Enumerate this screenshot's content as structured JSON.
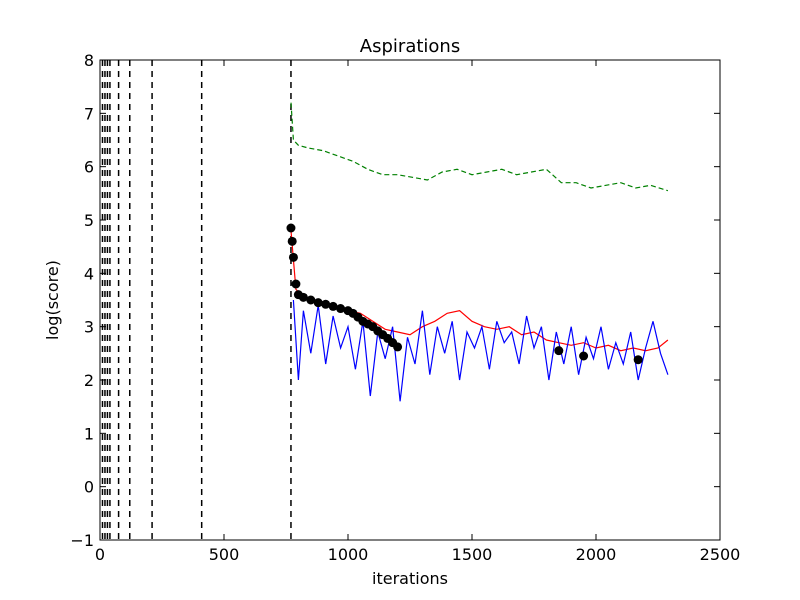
{
  "chart_data": {
    "type": "line",
    "title": "Aspirations",
    "xlabel": "iterations",
    "ylabel": "log(score)",
    "xlim": [
      0,
      2500
    ],
    "ylim": [
      -1,
      8
    ],
    "x_ticks": [
      0,
      500,
      1000,
      1500,
      2000,
      2500
    ],
    "x_tick_labels": [
      "0",
      "500",
      "1000",
      "1500",
      "2000",
      "2500"
    ],
    "y_ticks": [
      -1,
      0,
      1,
      2,
      3,
      4,
      5,
      6,
      7,
      8
    ],
    "y_tick_labels": [
      "−1",
      "0",
      "1",
      "2",
      "3",
      "4",
      "5",
      "6",
      "7",
      "8"
    ],
    "grid": false,
    "legend": "none",
    "restart_iterations": [
      10,
      20,
      30,
      40,
      75,
      120,
      210,
      410,
      770
    ],
    "series": [
      {
        "style": "dashed",
        "color": "#008000",
        "x": [
          770,
          780,
          800,
          840,
          900,
          960,
          1020,
          1080,
          1140,
          1200,
          1260,
          1320,
          1380,
          1440,
          1500,
          1560,
          1620,
          1680,
          1740,
          1800,
          1860,
          1920,
          1980,
          2040,
          2100,
          2160,
          2220,
          2290
        ],
        "y": [
          7.2,
          6.5,
          6.4,
          6.35,
          6.3,
          6.2,
          6.1,
          5.95,
          5.85,
          5.85,
          5.8,
          5.75,
          5.9,
          5.95,
          5.85,
          5.9,
          5.95,
          5.85,
          5.9,
          5.95,
          5.7,
          5.7,
          5.6,
          5.65,
          5.7,
          5.6,
          5.65,
          5.55
        ]
      },
      {
        "style": "solid",
        "color": "#ff0000",
        "x": [
          770,
          790,
          820,
          860,
          900,
          950,
          1000,
          1050,
          1100,
          1150,
          1200,
          1250,
          1300,
          1350,
          1400,
          1450,
          1500,
          1550,
          1600,
          1650,
          1700,
          1750,
          1800,
          1850,
          1900,
          1950,
          2000,
          2050,
          2100,
          2150,
          2200,
          2250,
          2290
        ],
        "y": [
          4.8,
          3.7,
          3.55,
          3.45,
          3.4,
          3.35,
          3.3,
          3.25,
          3.1,
          2.95,
          2.9,
          2.85,
          3.0,
          3.1,
          3.25,
          3.3,
          3.1,
          3.0,
          2.95,
          3.0,
          2.85,
          2.9,
          2.75,
          2.7,
          2.65,
          2.7,
          2.6,
          2.65,
          2.55,
          2.6,
          2.55,
          2.6,
          2.75
        ]
      },
      {
        "style": "solid",
        "color": "#0000ff",
        "x": [
          780,
          800,
          820,
          850,
          880,
          910,
          940,
          970,
          1000,
          1030,
          1060,
          1090,
          1120,
          1150,
          1180,
          1210,
          1240,
          1270,
          1300,
          1330,
          1360,
          1390,
          1420,
          1450,
          1480,
          1510,
          1540,
          1570,
          1600,
          1630,
          1660,
          1690,
          1720,
          1750,
          1780,
          1810,
          1840,
          1870,
          1900,
          1930,
          1960,
          1990,
          2020,
          2050,
          2080,
          2110,
          2140,
          2170,
          2200,
          2230,
          2260,
          2290
        ],
        "y": [
          3.5,
          2.0,
          3.3,
          2.5,
          3.4,
          2.3,
          3.2,
          2.6,
          3.0,
          2.2,
          3.1,
          1.7,
          2.9,
          2.4,
          3.0,
          1.6,
          2.8,
          2.3,
          3.3,
          2.1,
          3.0,
          2.5,
          3.1,
          2.0,
          2.9,
          2.6,
          3.0,
          2.2,
          3.1,
          2.7,
          2.9,
          2.3,
          3.2,
          2.6,
          3.0,
          2.0,
          2.9,
          2.3,
          3.0,
          2.1,
          2.8,
          2.4,
          3.0,
          2.2,
          2.7,
          2.3,
          2.9,
          2.0,
          2.6,
          3.1,
          2.5,
          2.1
        ]
      },
      {
        "style": "markers",
        "color": "#000000",
        "x": [
          770,
          775,
          780,
          790,
          800,
          820,
          850,
          880,
          910,
          940,
          970,
          1000,
          1020,
          1040,
          1060,
          1080,
          1100,
          1120,
          1140,
          1160,
          1180,
          1200,
          1850,
          1950,
          2170
        ],
        "y": [
          4.85,
          4.6,
          4.3,
          3.8,
          3.6,
          3.55,
          3.5,
          3.45,
          3.42,
          3.38,
          3.34,
          3.3,
          3.25,
          3.18,
          3.1,
          3.05,
          3.0,
          2.92,
          2.85,
          2.78,
          2.7,
          2.62,
          2.55,
          2.45,
          2.38
        ]
      }
    ]
  }
}
